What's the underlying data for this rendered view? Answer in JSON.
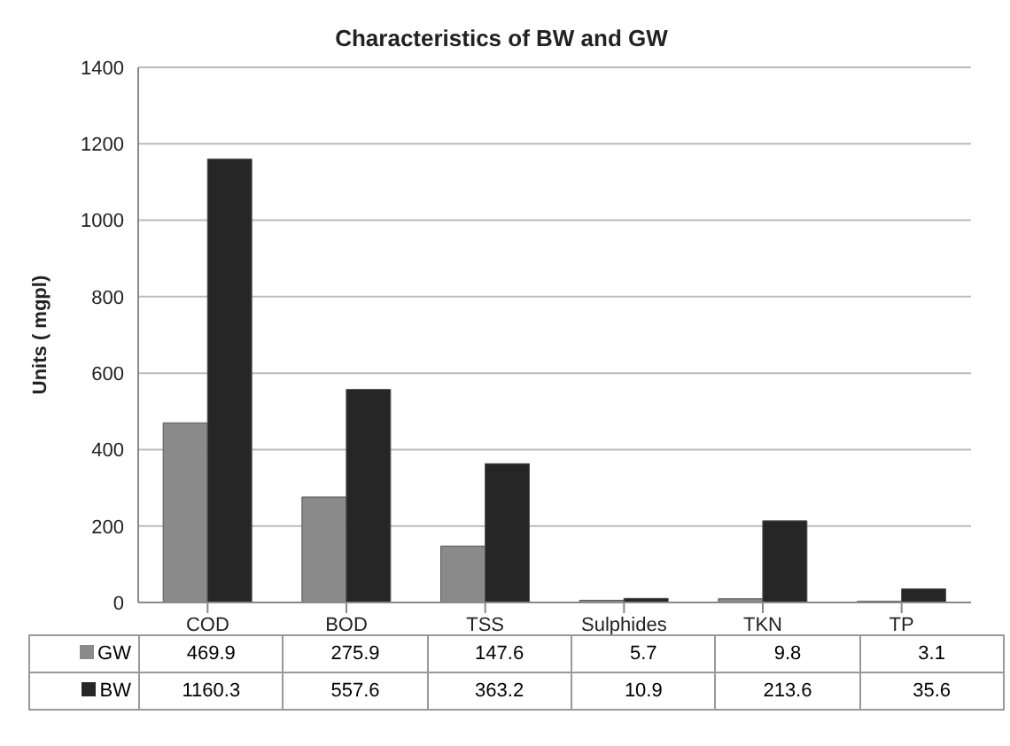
{
  "chart_data": {
    "type": "bar",
    "title": "Characteristics of BW and GW",
    "ylabel": "Units ( mgpl)",
    "categories": [
      "COD",
      "BOD",
      "TSS",
      "Sulphides",
      "TKN",
      "TP"
    ],
    "series": [
      {
        "name": "GW",
        "color": "#8a8a8a",
        "values": [
          469.9,
          275.9,
          147.6,
          5.7,
          9.8,
          3.1
        ]
      },
      {
        "name": "BW",
        "color": "#262626",
        "values": [
          1160.3,
          557.6,
          363.2,
          10.9,
          213.6,
          35.6
        ]
      }
    ],
    "ylim": [
      0,
      1400
    ],
    "yticks": [
      0,
      200,
      400,
      600,
      800,
      1000,
      1200,
      1400
    ],
    "grid": "y",
    "legend": "bottom",
    "data_labels": true
  }
}
